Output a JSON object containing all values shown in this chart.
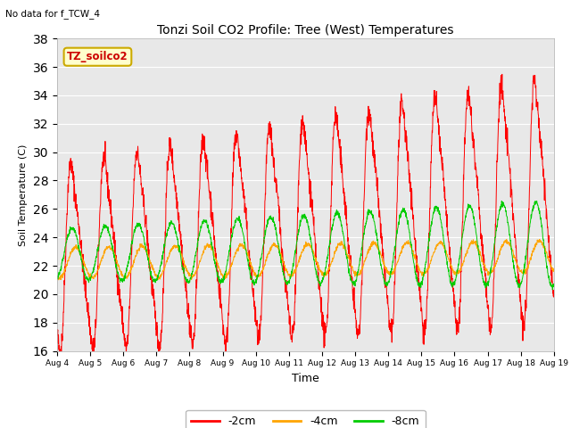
{
  "title": "Tonzi Soil CO2 Profile: Tree (West) Temperatures",
  "top_left_text": "No data for f_TCW_4",
  "ylabel": "Soil Temperature (C)",
  "xlabel": "Time",
  "ylim": [
    16,
    38
  ],
  "yticks": [
    16,
    18,
    20,
    22,
    24,
    26,
    28,
    30,
    32,
    34,
    36,
    38
  ],
  "line_colors": {
    "2cm": "#FF0000",
    "4cm": "#FFA500",
    "8cm": "#00CC00"
  },
  "legend_label": "TZ_soilco2",
  "legend_box_color": "#FFFFCC",
  "legend_box_edge": "#CCAA00",
  "bg_color": "#E8E8E8",
  "fig_bg_color": "#FFFFFF",
  "grid_color": "#FFFFFF",
  "n_days": 15,
  "start_day": 4,
  "points_per_day": 144
}
